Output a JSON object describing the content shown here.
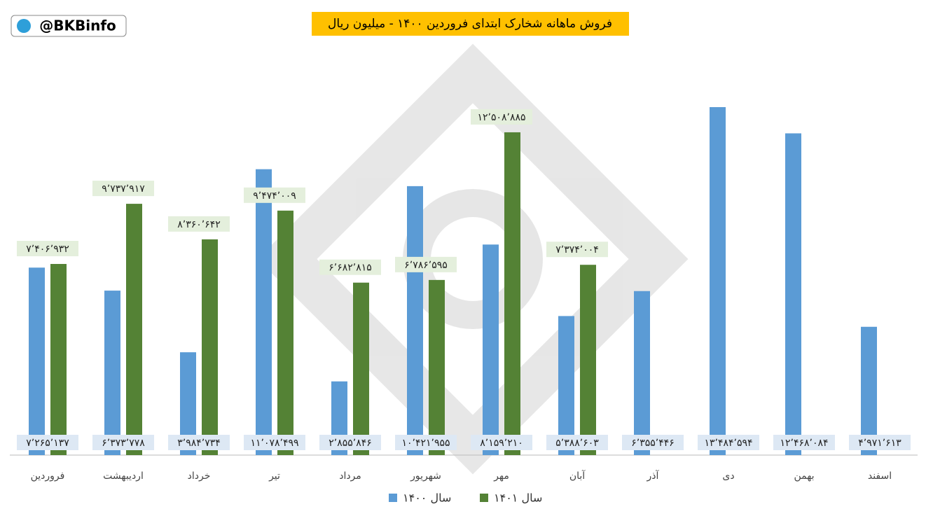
{
  "chart_data": {
    "type": "bar",
    "title": "فروش ماهانه شخارک ابتدای فروردین ۱۴۰۰ - میلیون ریال",
    "logo": "@BKBinfo",
    "categories": [
      "فروردین",
      "اردیبهشت",
      "خرداد",
      "تیر",
      "مرداد",
      "شهریور",
      "مهر",
      "آبان",
      "آذر",
      "دی",
      "بهمن",
      "اسفند"
    ],
    "ylim": [
      0,
      14000000
    ],
    "series": [
      {
        "name": "سال ۱۴۰۰",
        "color": "#5b9bd5",
        "values": [
          7265137,
          6373778,
          3984734,
          11078499,
          2855846,
          10421955,
          8159210,
          5388603,
          6355446,
          13484594,
          12468084,
          4971613
        ],
        "value_labels": [
          "۷٬۲۶۵٬۱۳۷",
          "۶٬۳۷۳٬۷۷۸",
          "۳٬۹۸۴٬۷۳۴",
          "۱۱٬۰۷۸٬۴۹۹",
          "۲٬۸۵۵٬۸۴۶",
          "۱۰٬۴۲۱٬۹۵۵",
          "۸٬۱۵۹٬۲۱۰",
          "۵٬۳۸۸٬۶۰۳",
          "۶٬۳۵۵٬۴۴۶",
          "۱۳٬۴۸۴٬۵۹۴",
          "۱۲٬۴۶۸٬۰۸۴",
          "۴٬۹۷۱٬۶۱۳"
        ]
      },
      {
        "name": "سال ۱۴۰۱",
        "color": "#548235",
        "values": [
          7406932,
          9737917,
          8360642,
          9474009,
          6682815,
          6786595,
          12508885,
          7374004,
          null,
          null,
          null,
          null
        ],
        "value_labels": [
          "۷٬۴۰۶٬۹۳۲",
          "۹٬۷۳۷٬۹۱۷",
          "۸٬۳۶۰٬۶۴۲",
          "۹٬۴۷۴٬۰۰۹",
          "۶٬۶۸۲٬۸۱۵",
          "۶٬۷۸۶٬۵۹۵",
          "۱۲٬۵۰۸٬۸۸۵",
          "۷٬۳۷۴٬۰۰۴",
          null,
          null,
          null,
          null
        ]
      }
    ]
  }
}
